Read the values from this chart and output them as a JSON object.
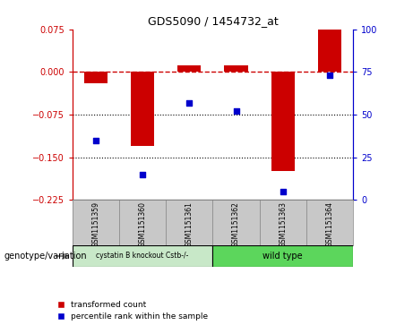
{
  "title": "GDS5090 / 1454732_at",
  "samples": [
    "GSM1151359",
    "GSM1151360",
    "GSM1151361",
    "GSM1151362",
    "GSM1151363",
    "GSM1151364"
  ],
  "bar_values": [
    -0.02,
    -0.13,
    0.012,
    0.012,
    -0.175,
    0.075
  ],
  "dot_values": [
    35,
    15,
    57,
    52,
    5,
    73
  ],
  "ylim_left": [
    -0.225,
    0.075
  ],
  "ylim_right": [
    0,
    100
  ],
  "yticks_left": [
    0.075,
    0,
    -0.075,
    -0.15,
    -0.225
  ],
  "yticks_right": [
    100,
    75,
    50,
    25,
    0
  ],
  "bar_color": "#cc0000",
  "dot_color": "#0000cc",
  "hline_color": "#cc0000",
  "dotted_lines": [
    -0.075,
    -0.15
  ],
  "group_colors": [
    "#c8e8c8",
    "#5cd65c"
  ],
  "group_labels": [
    "cystatin B knockout Cstb-/-",
    "wild type"
  ],
  "sample_bg": "#c8c8c8",
  "xlabel_row": "genotype/variation",
  "legend_labels": [
    "transformed count",
    "percentile rank within the sample"
  ],
  "bar_width": 0.5
}
